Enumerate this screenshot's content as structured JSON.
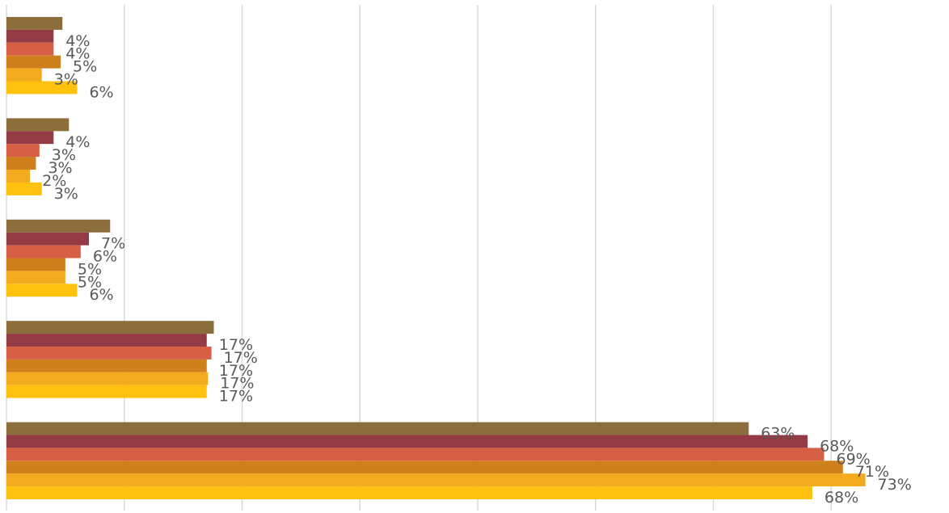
{
  "chart_data": {
    "type": "bar",
    "orientation": "horizontal",
    "grid": true,
    "xlim": [
      0,
      80
    ],
    "categories": [
      "",
      "",
      "",
      "",
      ""
    ],
    "series": [
      {
        "color": "#8B6E3C",
        "values": [
          4.75,
          5.3,
          8.8,
          17.6,
          63
        ],
        "labels": [
          "",
          "",
          "",
          "",
          "63%"
        ]
      },
      {
        "color": "#943A44",
        "values": [
          4,
          4,
          7,
          17,
          68
        ],
        "labels": [
          "4%",
          "4%",
          "7%",
          "17%",
          "68%"
        ]
      },
      {
        "color": "#D65F46",
        "values": [
          4,
          2.8,
          6.3,
          17.4,
          69.4
        ],
        "labels": [
          "4%",
          "3%",
          "6%",
          "17%",
          "69%"
        ]
      },
      {
        "color": "#CF7F1C",
        "values": [
          4.6,
          2.5,
          5,
          17,
          71
        ],
        "labels": [
          "5%",
          "3%",
          "5%",
          "17%",
          "71%"
        ]
      },
      {
        "color": "#F2AA1E",
        "values": [
          3,
          2,
          5,
          17.1,
          72.9
        ],
        "labels": [
          "3%",
          "2%",
          "5%",
          "17%",
          "73%"
        ]
      },
      {
        "color": "#FEC10E",
        "values": [
          6,
          3,
          6,
          17,
          68.4
        ],
        "labels": [
          "6%",
          "3%",
          "6%",
          "17%",
          "68%"
        ]
      }
    ]
  }
}
